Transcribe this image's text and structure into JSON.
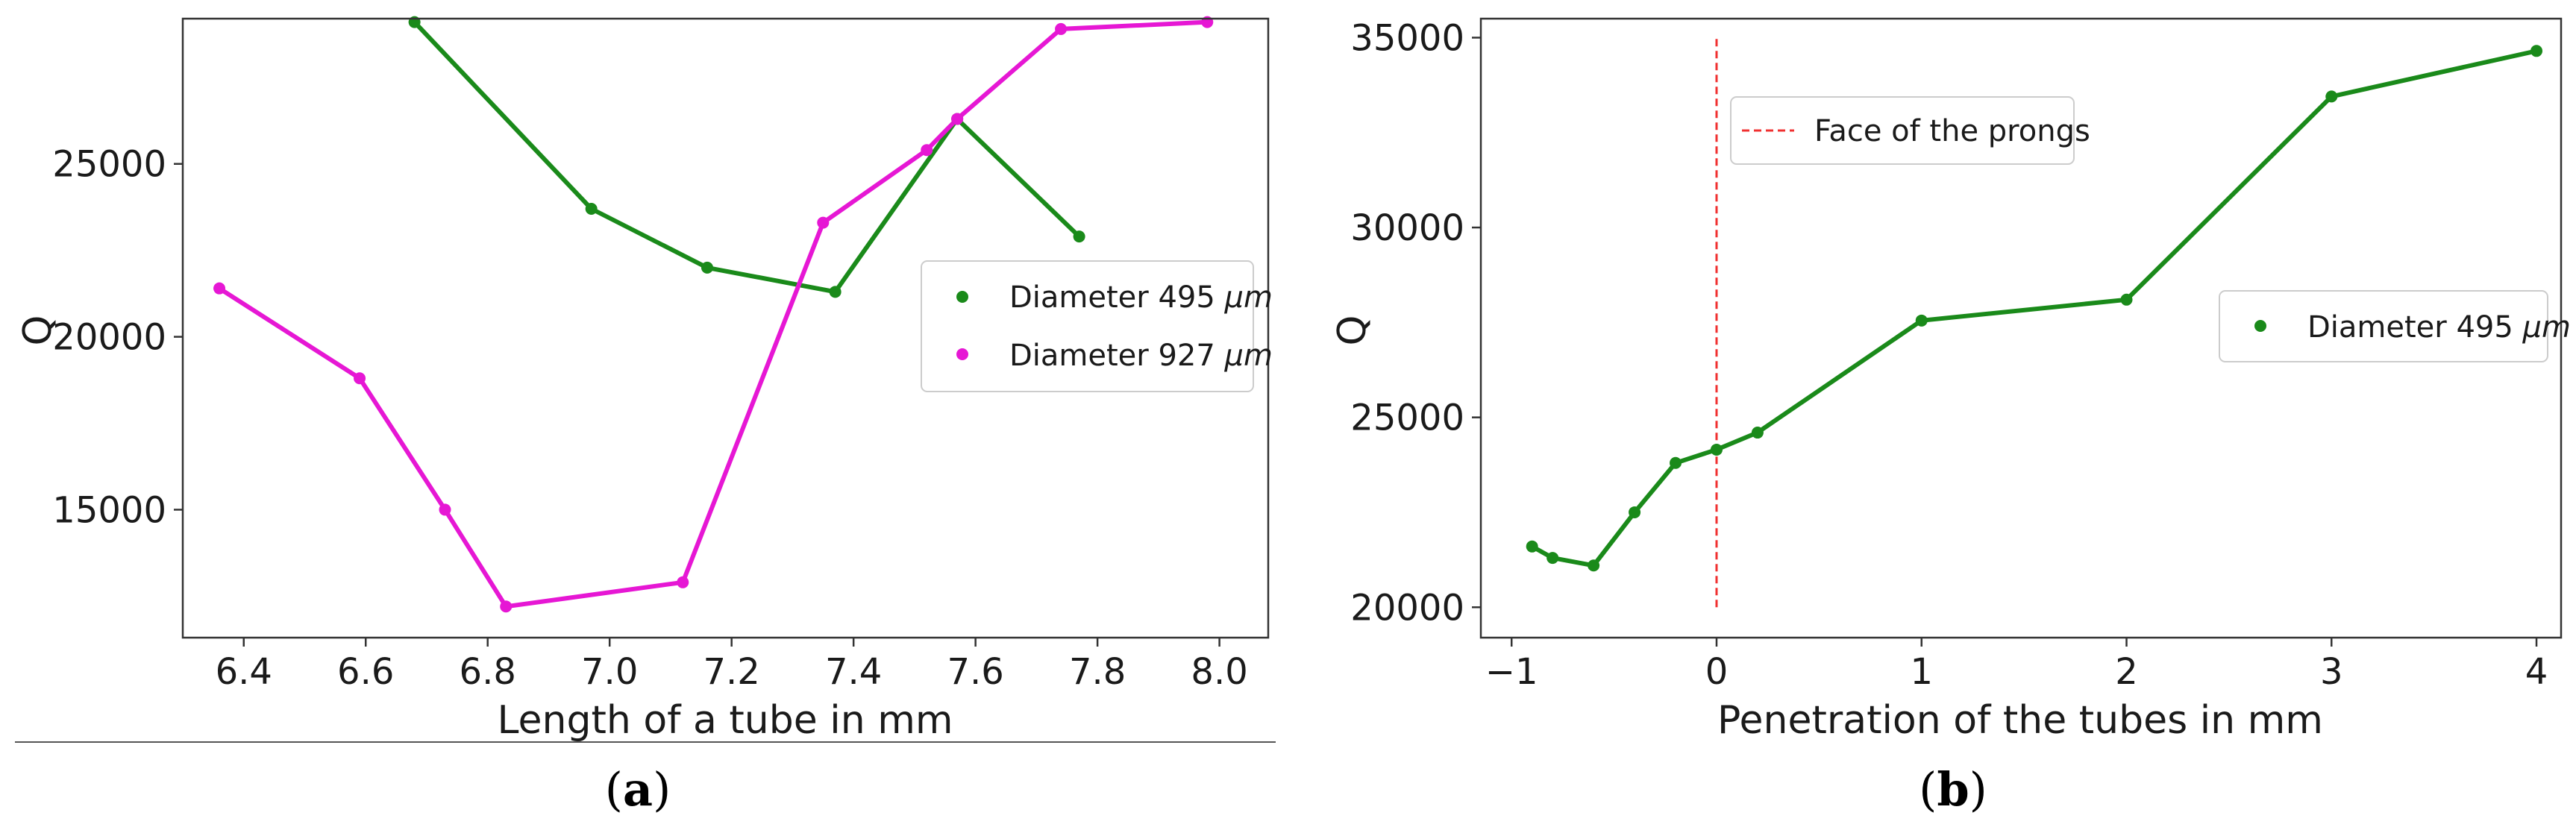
{
  "colors": {
    "green": "#1a8a1a",
    "magenta": "#e617d4",
    "red_dashed": "#f03030"
  },
  "chart_data": [
    {
      "panel_label": "a",
      "type": "line",
      "xlabel": "Length of a tube in mm",
      "ylabel": "Q",
      "xlim": [
        6.3,
        8.08
      ],
      "ylim": [
        11300,
        29200
      ],
      "xticks": [
        6.4,
        6.6,
        6.8,
        7.0,
        7.2,
        7.4,
        7.6,
        7.8,
        8.0
      ],
      "xtick_labels": [
        "6.4",
        "6.6",
        "6.8",
        "7.0",
        "7.2",
        "7.4",
        "7.6",
        "7.8",
        "8.0"
      ],
      "yticks": [
        15000,
        20000,
        25000
      ],
      "ytick_labels": [
        "15000",
        "20000",
        "25000"
      ],
      "legend_position": "center-right",
      "series": [
        {
          "name_prefix": "Diameter 495",
          "name_unit": "μm",
          "color": "#1a8a1a",
          "x": [
            6.68,
            6.97,
            7.16,
            7.37,
            7.57,
            7.77
          ],
          "y": [
            29100,
            23700,
            22000,
            21300,
            26300,
            22900
          ]
        },
        {
          "name_prefix": "Diameter 927",
          "name_unit": "μm",
          "color": "#e617d4",
          "x": [
            6.36,
            6.59,
            6.73,
            6.83,
            7.12,
            7.35,
            7.52,
            7.57,
            7.74,
            7.98
          ],
          "y": [
            21400,
            18800,
            15000,
            12200,
            12900,
            23300,
            25400,
            26300,
            28900,
            29100
          ]
        }
      ]
    },
    {
      "panel_label": "b",
      "type": "line",
      "xlabel": "Penetration of the tubes in mm",
      "ylabel": "Q",
      "xlim": [
        -1.15,
        4.12
      ],
      "ylim": [
        19200,
        35500
      ],
      "xticks": [
        -1,
        0,
        1,
        2,
        3,
        4
      ],
      "xtick_labels": [
        "−1",
        "0",
        "1",
        "2",
        "3",
        "4"
      ],
      "yticks": [
        20000,
        25000,
        30000,
        35000
      ],
      "ytick_labels": [
        "20000",
        "25000",
        "30000",
        "35000"
      ],
      "legend_position": "center-right",
      "series": [
        {
          "name_prefix": "Diameter 495",
          "name_unit": "μm",
          "color": "#1a8a1a",
          "x": [
            -0.9,
            -0.8,
            -0.6,
            -0.4,
            -0.2,
            0.0,
            0.2,
            1.0,
            2.0,
            3.0,
            4.0
          ],
          "y": [
            21600,
            21300,
            21100,
            22500,
            23800,
            24150,
            24600,
            27550,
            28100,
            33450,
            34650
          ]
        }
      ],
      "vline": {
        "x": 0,
        "y_from": 20000,
        "y_to": 35000,
        "label": "Face of the prongs",
        "color": "#f03030",
        "style": "dashed"
      }
    }
  ]
}
